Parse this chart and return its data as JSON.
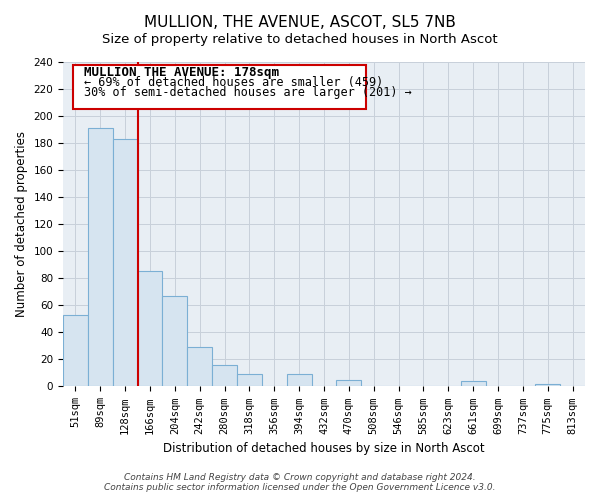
{
  "title": "MULLION, THE AVENUE, ASCOT, SL5 7NB",
  "subtitle": "Size of property relative to detached houses in North Ascot",
  "xlabel": "Distribution of detached houses by size in North Ascot",
  "ylabel": "Number of detached properties",
  "categories": [
    "51sqm",
    "89sqm",
    "128sqm",
    "166sqm",
    "204sqm",
    "242sqm",
    "280sqm",
    "318sqm",
    "356sqm",
    "394sqm",
    "432sqm",
    "470sqm",
    "508sqm",
    "546sqm",
    "585sqm",
    "623sqm",
    "661sqm",
    "699sqm",
    "737sqm",
    "775sqm",
    "813sqm"
  ],
  "values": [
    53,
    191,
    183,
    85,
    67,
    29,
    16,
    9,
    0,
    9,
    0,
    5,
    0,
    0,
    0,
    0,
    4,
    0,
    0,
    2,
    0
  ],
  "bar_color": "#d6e4f0",
  "bar_edge_color": "#7bafd4",
  "vline_color": "#cc0000",
  "vline_x": 2.5,
  "annotation_title": "MULLION THE AVENUE: 178sqm",
  "annotation_line1": "← 69% of detached houses are smaller (459)",
  "annotation_line2": "30% of semi-detached houses are larger (201) →",
  "box_facecolor": "#ffffff",
  "box_edgecolor": "#cc0000",
  "grid_color": "#c8d0da",
  "bg_color": "#e8eef4",
  "ylim": [
    0,
    240
  ],
  "yticks": [
    0,
    20,
    40,
    60,
    80,
    100,
    120,
    140,
    160,
    180,
    200,
    220,
    240
  ],
  "footer_line1": "Contains HM Land Registry data © Crown copyright and database right 2024.",
  "footer_line2": "Contains public sector information licensed under the Open Government Licence v3.0.",
  "title_fontsize": 11,
  "subtitle_fontsize": 9.5,
  "axis_label_fontsize": 8.5,
  "tick_fontsize": 7.5,
  "annotation_title_fontsize": 9,
  "annotation_text_fontsize": 8.5,
  "footer_fontsize": 6.5
}
